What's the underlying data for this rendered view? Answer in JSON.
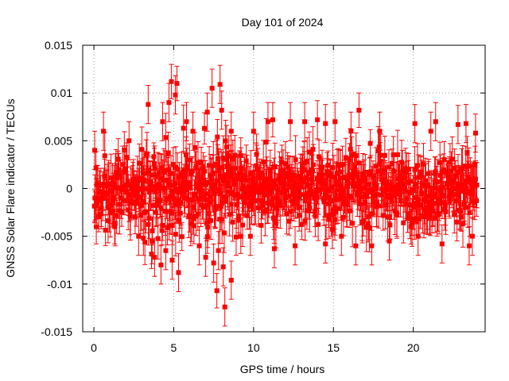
{
  "chart_data": {
    "type": "scatter",
    "title": "Day 101 of 2024",
    "xlabel": "GPS time / hours",
    "ylabel": "GNSS Solar Flare indicator / TECUs",
    "xlim": [
      -0.7,
      24.5
    ],
    "ylim": [
      -0.015,
      0.015
    ],
    "xticks": [
      0,
      5,
      10,
      15,
      20
    ],
    "xtick_labels": [
      "0",
      "5",
      "10",
      "15",
      "20"
    ],
    "yticks": [
      -0.015,
      -0.01,
      -0.005,
      0,
      0.005,
      0.01,
      0.015
    ],
    "ytick_labels": [
      "-0.015",
      "-0.01",
      "-0.005",
      "0",
      "0.005",
      "0.01",
      "0.015"
    ],
    "grid": true,
    "legend": "none",
    "marker_color": "#ff0000",
    "series": [
      {
        "marker": "square",
        "error_bars": true,
        "points": [
          {
            "x": 0.05,
            "y": 0.004,
            "err": 0.002
          },
          {
            "x": 0.15,
            "y": -0.004,
            "err": 0.0018
          },
          {
            "x": 0.6,
            "y": 0.006,
            "err": 0.002
          },
          {
            "x": 1.3,
            "y": -0.004,
            "err": 0.0018
          },
          {
            "x": 2.2,
            "y": 0.005,
            "err": 0.002
          },
          {
            "x": 2.8,
            "y": -0.005,
            "err": 0.002
          },
          {
            "x": 3.4,
            "y": 0.0088,
            "err": 0.002
          },
          {
            "x": 3.1,
            "y": -0.0052,
            "err": 0.0018
          },
          {
            "x": 3.8,
            "y": -0.0072,
            "err": 0.002
          },
          {
            "x": 4.2,
            "y": -0.008,
            "err": 0.002
          },
          {
            "x": 4.3,
            "y": 0.007,
            "err": 0.002
          },
          {
            "x": 4.5,
            "y": -0.0065,
            "err": 0.002
          },
          {
            "x": 4.7,
            "y": 0.009,
            "err": 0.002
          },
          {
            "x": 4.85,
            "y": 0.0112,
            "err": 0.0018
          },
          {
            "x": 4.9,
            "y": -0.0075,
            "err": 0.002
          },
          {
            "x": 5.1,
            "y": 0.0098,
            "err": 0.002
          },
          {
            "x": 5.2,
            "y": 0.011,
            "err": 0.0018
          },
          {
            "x": 5.3,
            "y": -0.0088,
            "err": 0.002
          },
          {
            "x": 5.8,
            "y": 0.007,
            "err": 0.002
          },
          {
            "x": 6.2,
            "y": 0.006,
            "err": 0.002
          },
          {
            "x": 6.6,
            "y": -0.006,
            "err": 0.002
          },
          {
            "x": 7.0,
            "y": -0.0072,
            "err": 0.002
          },
          {
            "x": 7.1,
            "y": 0.008,
            "err": 0.002
          },
          {
            "x": 7.4,
            "y": 0.0105,
            "err": 0.002
          },
          {
            "x": 7.5,
            "y": -0.0078,
            "err": 0.002
          },
          {
            "x": 7.8,
            "y": -0.0065,
            "err": 0.002
          },
          {
            "x": 7.7,
            "y": -0.0107,
            "err": 0.0018
          },
          {
            "x": 7.9,
            "y": 0.0109,
            "err": 0.002
          },
          {
            "x": 8.0,
            "y": 0.0082,
            "err": 0.002
          },
          {
            "x": 8.1,
            "y": -0.0082,
            "err": 0.002
          },
          {
            "x": 8.2,
            "y": -0.0124,
            "err": 0.002
          },
          {
            "x": 8.6,
            "y": -0.0096,
            "err": 0.002
          },
          {
            "x": 8.6,
            "y": 0.006,
            "err": 0.002
          },
          {
            "x": 9.2,
            "y": -0.005,
            "err": 0.0018
          },
          {
            "x": 9.8,
            "y": -0.005,
            "err": 0.002
          },
          {
            "x": 10.0,
            "y": 0.006,
            "err": 0.002
          },
          {
            "x": 10.9,
            "y": 0.007,
            "err": 0.002
          },
          {
            "x": 11.2,
            "y": 0.0072,
            "err": 0.0018
          },
          {
            "x": 11.3,
            "y": -0.0063,
            "err": 0.002
          },
          {
            "x": 12.3,
            "y": 0.007,
            "err": 0.002
          },
          {
            "x": 12.6,
            "y": -0.006,
            "err": 0.002
          },
          {
            "x": 13.2,
            "y": 0.007,
            "err": 0.002
          },
          {
            "x": 14.0,
            "y": 0.0072,
            "err": 0.002
          },
          {
            "x": 14.5,
            "y": 0.0068,
            "err": 0.002
          },
          {
            "x": 14.5,
            "y": -0.0058,
            "err": 0.002
          },
          {
            "x": 15.1,
            "y": 0.007,
            "err": 0.002
          },
          {
            "x": 15.5,
            "y": -0.005,
            "err": 0.002
          },
          {
            "x": 16.1,
            "y": 0.006,
            "err": 0.002
          },
          {
            "x": 16.4,
            "y": -0.006,
            "err": 0.002
          },
          {
            "x": 16.6,
            "y": 0.0082,
            "err": 0.0018
          },
          {
            "x": 17.4,
            "y": -0.006,
            "err": 0.002
          },
          {
            "x": 17.9,
            "y": 0.006,
            "err": 0.002
          },
          {
            "x": 18.5,
            "y": -0.0055,
            "err": 0.002
          },
          {
            "x": 20.1,
            "y": 0.0068,
            "err": 0.002
          },
          {
            "x": 20.3,
            "y": -0.005,
            "err": 0.002
          },
          {
            "x": 21.1,
            "y": 0.006,
            "err": 0.002
          },
          {
            "x": 21.4,
            "y": 0.007,
            "err": 0.002
          },
          {
            "x": 21.8,
            "y": -0.0058,
            "err": 0.002
          },
          {
            "x": 22.8,
            "y": 0.0067,
            "err": 0.002
          },
          {
            "x": 23.3,
            "y": 0.0068,
            "err": 0.002
          },
          {
            "x": 23.5,
            "y": -0.006,
            "err": 0.002
          },
          {
            "x": 23.7,
            "y": -0.005,
            "err": 0.002
          },
          {
            "x": 23.9,
            "y": 0.0058,
            "err": 0.002
          }
        ],
        "dense_segments": [
          {
            "x_start": 0.0,
            "x_end": 3.0,
            "amplitude": 0.0035,
            "count": 90
          },
          {
            "x_start": 3.0,
            "x_end": 9.0,
            "amplitude": 0.0055,
            "count": 220
          },
          {
            "x_start": 9.0,
            "x_end": 15.0,
            "amplitude": 0.004,
            "count": 210
          },
          {
            "x_start": 15.0,
            "x_end": 19.0,
            "amplitude": 0.0038,
            "count": 140
          },
          {
            "x_start": 19.0,
            "x_end": 24.0,
            "amplitude": 0.0038,
            "count": 170
          }
        ]
      }
    ]
  }
}
